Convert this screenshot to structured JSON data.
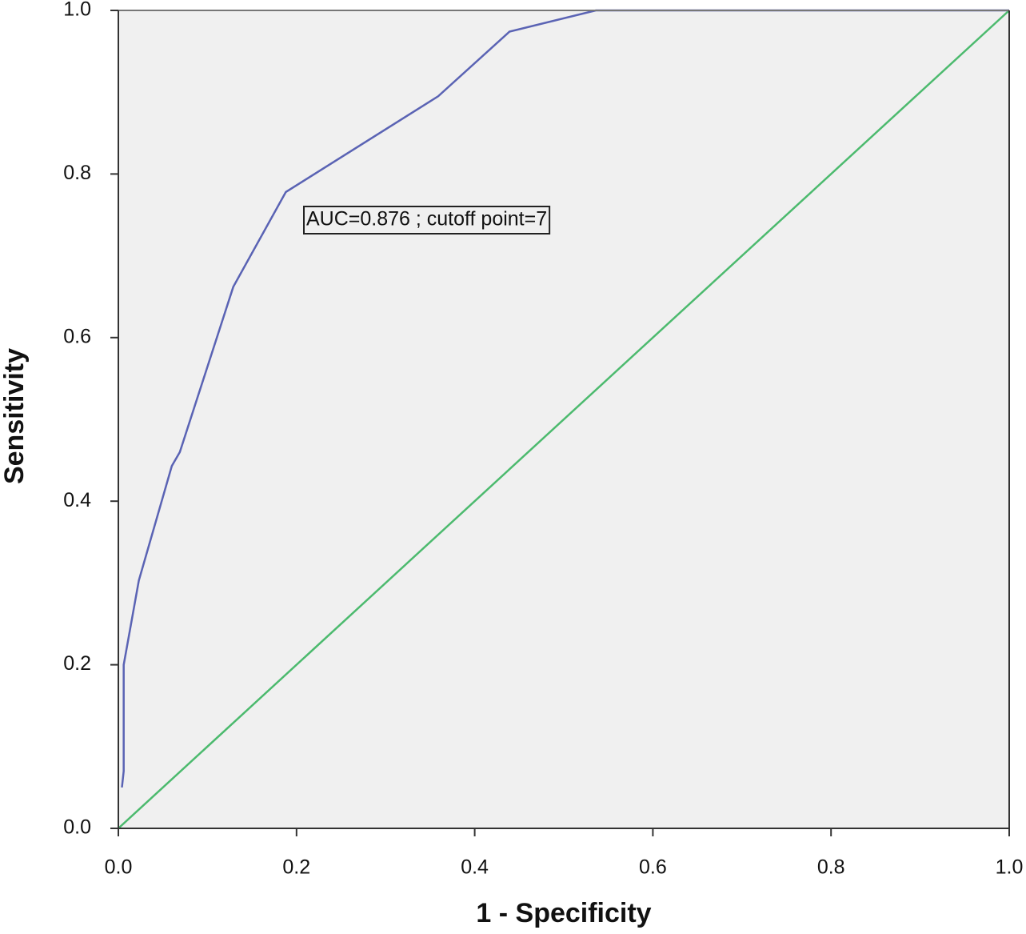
{
  "chart_data": {
    "type": "line",
    "xlabel": "1 - Specificity",
    "ylabel": "Sensitivity",
    "annotation": "AUC=0.876 ; cutoff point=7",
    "xlim": [
      0,
      1
    ],
    "ylim": [
      0,
      1
    ],
    "xticks": [
      {
        "value": 0,
        "label": "0.0"
      },
      {
        "value": 0.2,
        "label": "0.2"
      },
      {
        "value": 0.4,
        "label": "0.4"
      },
      {
        "value": 0.6,
        "label": "0.6"
      },
      {
        "value": 0.8,
        "label": "0.8"
      },
      {
        "value": 1,
        "label": "1.0"
      }
    ],
    "yticks": [
      {
        "value": 0,
        "label": "0.0"
      },
      {
        "value": 0.2,
        "label": "0.2"
      },
      {
        "value": 0.4,
        "label": "0.4"
      },
      {
        "value": 0.6,
        "label": "0.6"
      },
      {
        "value": 0.8,
        "label": "0.8"
      },
      {
        "value": 1,
        "label": "1.0"
      }
    ],
    "series": [
      {
        "color": "#5a63b4",
        "x": [
          0.004,
          0.006,
          0.006,
          0.023,
          0.06,
          0.069,
          0.129,
          0.188,
          0.359,
          0.439,
          0.536,
          1
        ],
        "values": [
          0.05,
          0.07,
          0.2,
          0.303,
          0.443,
          0.46,
          0.662,
          0.778,
          0.895,
          0.974,
          1,
          1
        ]
      },
      {
        "color": "#4cba6e",
        "x": [
          0,
          1
        ],
        "values": [
          0,
          1
        ]
      }
    ]
  }
}
